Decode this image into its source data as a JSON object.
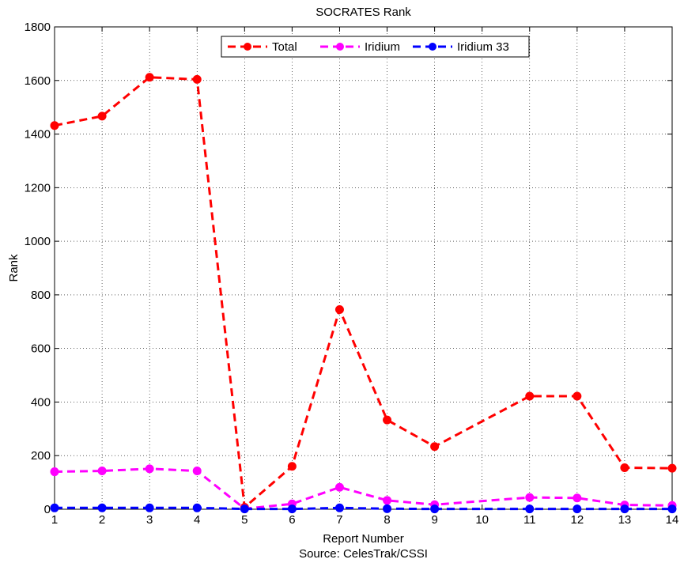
{
  "chart_data": {
    "type": "line",
    "title": "SOCRATES Rank",
    "xlabel": "Report Number",
    "ylabel": "Rank",
    "source": "Source: CelesTrak/CSSI",
    "x": [
      1,
      2,
      3,
      4,
      5,
      6,
      7,
      8,
      9,
      11,
      12,
      13,
      14
    ],
    "xticks": [
      1,
      2,
      3,
      4,
      5,
      6,
      7,
      8,
      9,
      10,
      11,
      12,
      13,
      14
    ],
    "yticks": [
      0,
      200,
      400,
      600,
      800,
      1000,
      1200,
      1400,
      1600,
      1800
    ],
    "xlim": [
      1,
      14
    ],
    "ylim": [
      0,
      1800
    ],
    "grid": true,
    "legend_position": "top-center",
    "series": [
      {
        "name": "Total",
        "color": "#ff0000",
        "values": [
          1432,
          1467,
          1612,
          1604,
          7,
          160,
          745,
          333,
          234,
          422,
          422,
          155,
          153
        ]
      },
      {
        "name": "Iridium",
        "color": "#ff00ff",
        "values": [
          140,
          143,
          151,
          143,
          2,
          20,
          82,
          33,
          17,
          44,
          42,
          16,
          14
        ]
      },
      {
        "name": "Iridium 33",
        "color": "#0000ff",
        "values": [
          5,
          5,
          5,
          5,
          1,
          1,
          5,
          2,
          1,
          1,
          1,
          1,
          1
        ]
      }
    ]
  }
}
